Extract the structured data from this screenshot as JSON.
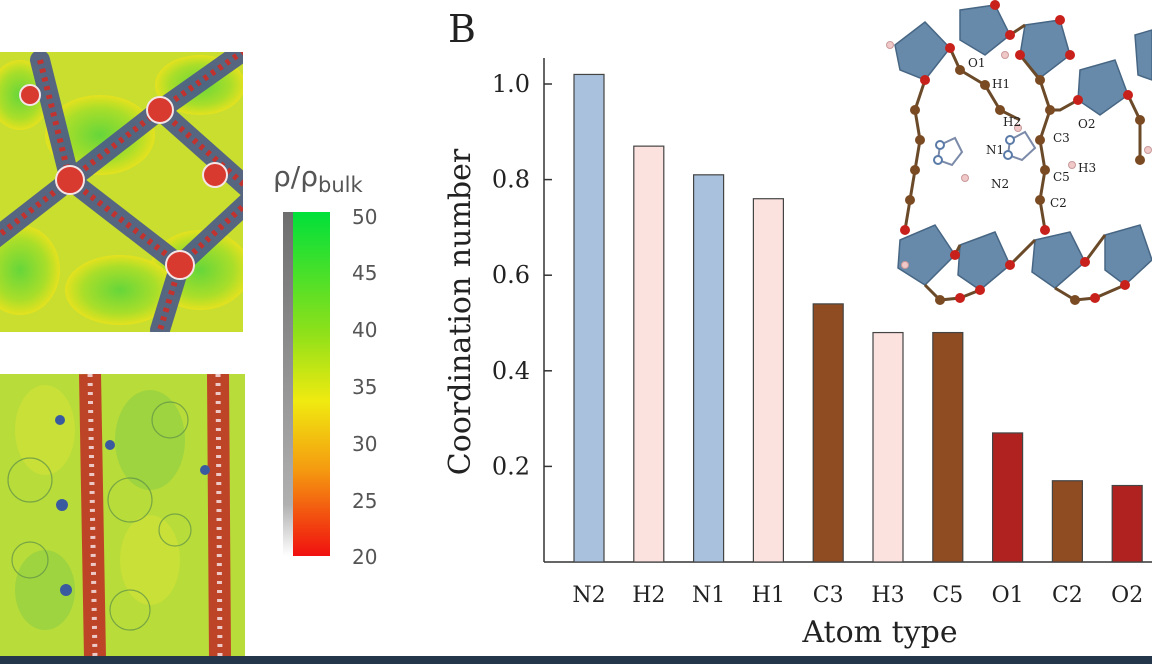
{
  "colorbar": {
    "label_base": "ρ/ρ",
    "label_sub": "bulk",
    "ticks": [
      "50",
      "45",
      "40",
      "35",
      "30",
      "25",
      "20"
    ]
  },
  "panel_label": "B",
  "chart_data": {
    "type": "bar",
    "xlabel": "Atom type",
    "ylabel": "Coordination number",
    "ylim": [
      0,
      1.1
    ],
    "yticks": [
      "0.2",
      "0.4",
      "0.6",
      "0.8",
      "1.0"
    ],
    "ytick_values": [
      0.2,
      0.4,
      0.6,
      0.8,
      1.0
    ],
    "categories": [
      "N2",
      "H2",
      "N1",
      "H1",
      "C3",
      "H3",
      "C5",
      "O1",
      "C2",
      "O2"
    ],
    "values": [
      1.02,
      0.87,
      0.81,
      0.76,
      0.54,
      0.48,
      0.48,
      0.27,
      0.17,
      0.16
    ],
    "bar_colors": [
      "#a9c1dc",
      "#fce2df",
      "#a9c1dc",
      "#fce2df",
      "#8f4b22",
      "#fce2df",
      "#8f4b22",
      "#b0221f",
      "#8f4b22",
      "#b0221f"
    ],
    "grid": false
  },
  "inset_labels": [
    "O1",
    "H1",
    "H2",
    "N1",
    "C3",
    "H3",
    "N2",
    "C5",
    "O2",
    "C2"
  ],
  "colors": {
    "nitrogen": "#a9c1dc",
    "hydrogen": "#fce2df",
    "carbon": "#8f4b22",
    "oxygen": "#b0221f",
    "polyhedra": "#5f84a6"
  }
}
